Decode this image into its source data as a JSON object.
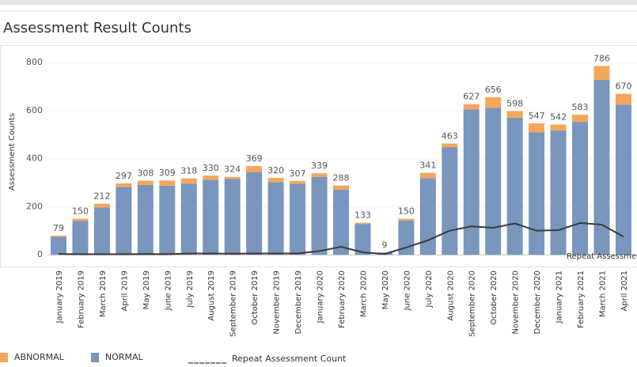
{
  "chart_data": {
    "type": "bar",
    "stacked": true,
    "title": "Assessment Result Counts",
    "y_label": "Assessment Counts",
    "categories": [
      "January 2019",
      "February 2019",
      "March 2019",
      "April 2019",
      "May 2019",
      "June 2019",
      "July 2019",
      "August 2019",
      "September 2019",
      "October 2019",
      "November 2019",
      "December 2019",
      "January 2020",
      "February 2020",
      "March 2020",
      "May 2020",
      "June 2020",
      "July 2020",
      "August 2020",
      "September 2020",
      "October 2020",
      "November 2020",
      "December 2020",
      "January 2021",
      "February 2021",
      "March 2021",
      "April 2021"
    ],
    "series": [
      {
        "name": "ABNORMAL",
        "color": "#f4a65c",
        "values": [
          5,
          10,
          15,
          15,
          18,
          22,
          22,
          18,
          8,
          25,
          18,
          12,
          15,
          18,
          5,
          0,
          8,
          22,
          15,
          22,
          45,
          28,
          38,
          25,
          30,
          58,
          45
        ]
      },
      {
        "name": "NORMAL",
        "color": "#7896be",
        "values": [
          74,
          140,
          197,
          282,
          290,
          287,
          296,
          312,
          316,
          344,
          302,
          295,
          324,
          270,
          128,
          9,
          142,
          319,
          448,
          605,
          611,
          570,
          509,
          517,
          553,
          728,
          625
        ]
      },
      {
        "name": "Repeat Assessment Count",
        "type": "line",
        "color": "#3a3a3a",
        "values": [
          3,
          2,
          2,
          2,
          3,
          2,
          5,
          5,
          4,
          5,
          5,
          5,
          15,
          33,
          10,
          3,
          30,
          60,
          100,
          118,
          112,
          130,
          100,
          102,
          132,
          125,
          75
        ]
      }
    ],
    "totals": [
      79,
      150,
      212,
      297,
      308,
      309,
      318,
      330,
      324,
      369,
      320,
      307,
      339,
      288,
      133,
      9,
      150,
      341,
      463,
      627,
      656,
      598,
      547,
      542,
      583,
      786,
      670
    ],
    "ylim": [
      0,
      850
    ],
    "yticks": [
      0,
      200,
      400,
      600,
      800
    ],
    "grid": true
  }
}
